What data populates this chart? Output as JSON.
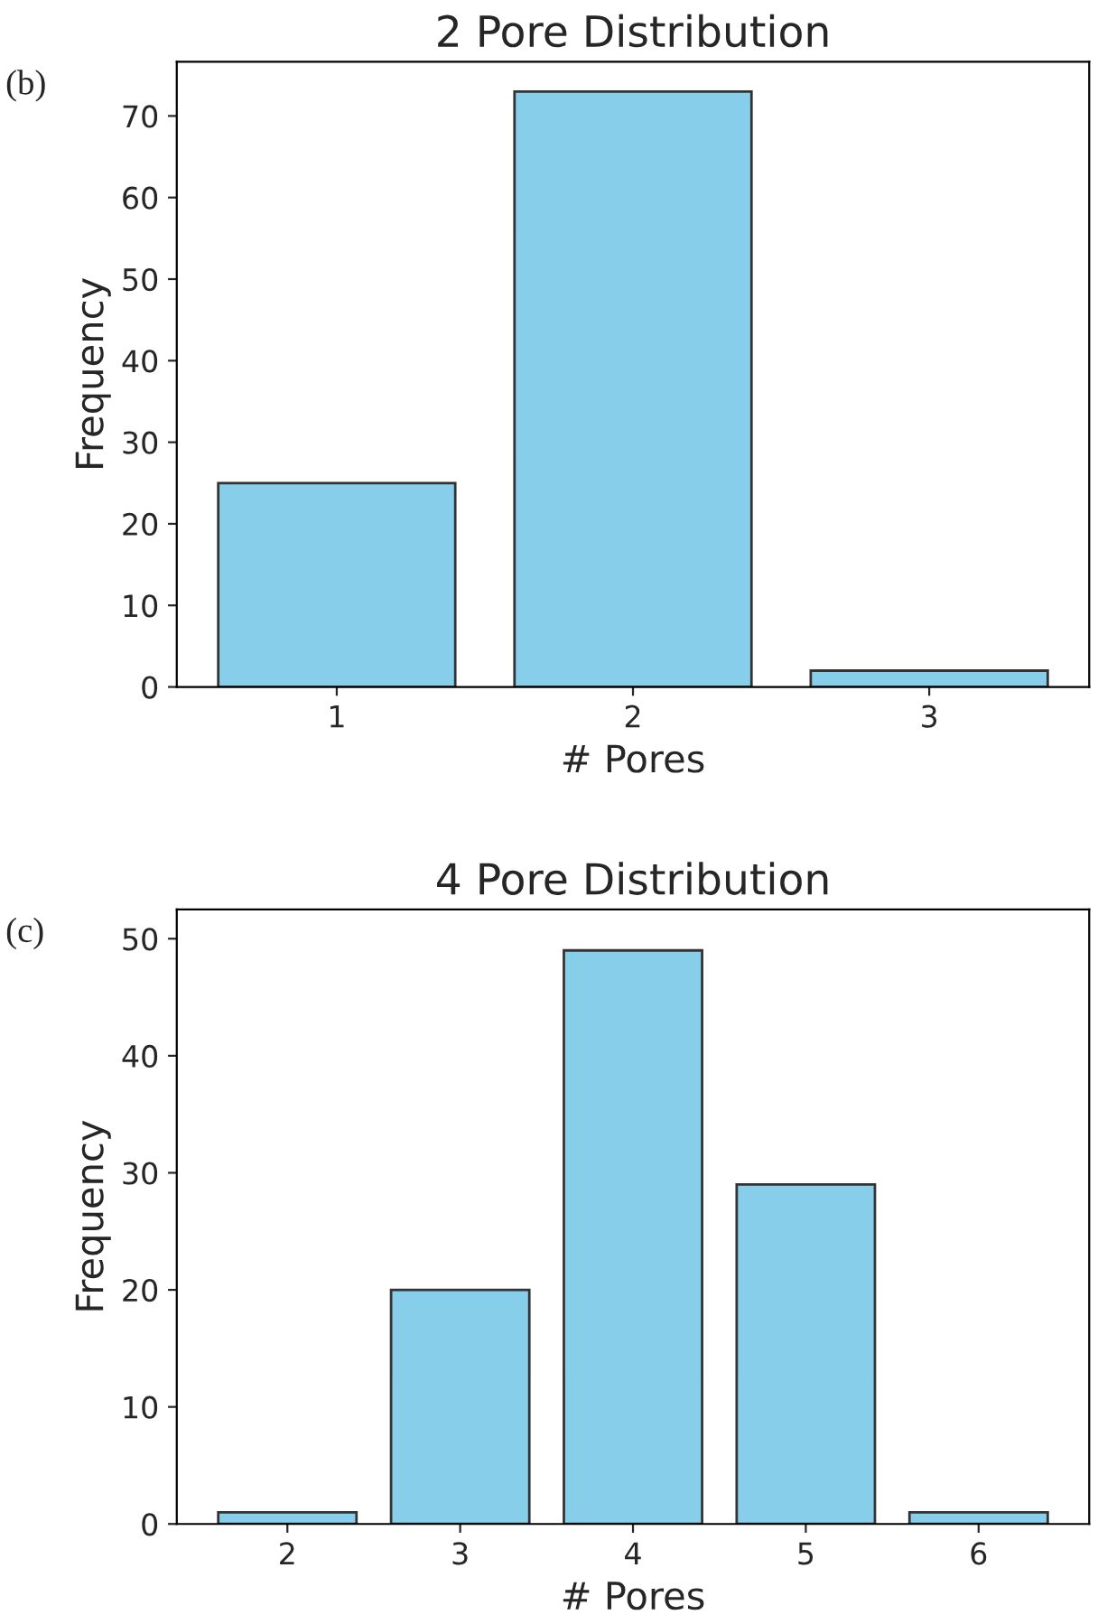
{
  "chart_data": [
    {
      "type": "bar",
      "title": "2 Pore Distribution",
      "xlabel": "# Pores",
      "ylabel": "Frequency",
      "categories": [
        "1",
        "2",
        "3"
      ],
      "values": [
        25,
        73,
        2
      ],
      "color": "#87ceeb",
      "ylim": [
        0,
        76.65
      ],
      "yticks": [
        0,
        10,
        20,
        30,
        40,
        50,
        60,
        70
      ],
      "annotations": [
        "(b)"
      ],
      "grid": false,
      "legend": false
    },
    {
      "type": "bar",
      "title": "4 Pore Distribution",
      "xlabel": "# Pores",
      "ylabel": "Frequency",
      "categories": [
        "2",
        "3",
        "4",
        "5",
        "6"
      ],
      "values": [
        1,
        20,
        49,
        29,
        1
      ],
      "color": "#87ceeb",
      "ylim": [
        0,
        52.5
      ],
      "yticks": [
        0,
        10,
        20,
        30,
        40,
        50
      ],
      "annotations": [
        "(c)"
      ],
      "grid": false,
      "legend": false
    }
  ]
}
